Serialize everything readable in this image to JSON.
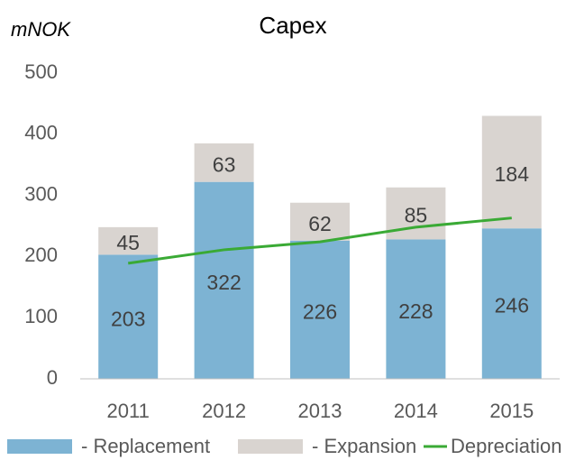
{
  "chart_data": {
    "type": "bar",
    "stacked": true,
    "title": "Capex",
    "y_label": "mNOK",
    "categories": [
      "2011",
      "2012",
      "2013",
      "2014",
      "2015"
    ],
    "series": [
      {
        "name": "- Replacement",
        "type": "bar",
        "color": "#7db3d3",
        "values": [
          203,
          322,
          226,
          228,
          246
        ]
      },
      {
        "name": "- Expansion",
        "type": "bar",
        "color": "#d9d4d0",
        "values": [
          45,
          63,
          62,
          85,
          184
        ]
      },
      {
        "name": "Depreciation",
        "type": "line",
        "color": "#3aaa35",
        "values": [
          189,
          211,
          224,
          248,
          263
        ]
      }
    ],
    "ylim": [
      0,
      500
    ],
    "yticks": [
      0,
      100,
      200,
      300,
      400,
      500
    ],
    "grid": false,
    "legend": "bottom"
  }
}
